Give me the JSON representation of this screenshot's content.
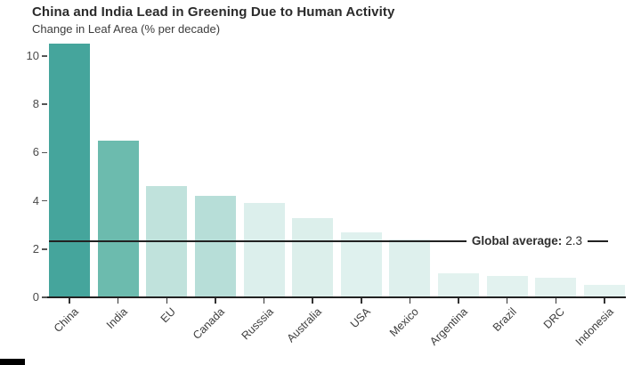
{
  "header": {
    "title": "China and India Lead in Greening Due to Human Activity",
    "subtitle": "Change in Leaf Area (% per decade)"
  },
  "chart_data": {
    "type": "bar",
    "title": "China and India Lead in Greening Due to Human Activity",
    "subtitle": "Change in Leaf Area (% per decade)",
    "categories": [
      "China",
      "India",
      "EU",
      "Canada",
      "Russsia",
      "Australia",
      "USA",
      "Mexico",
      "Argentina",
      "Brazil",
      "DRC",
      "Indonesia"
    ],
    "values": [
      10.5,
      6.5,
      4.6,
      4.2,
      3.9,
      3.3,
      2.7,
      2.4,
      1.0,
      0.9,
      0.8,
      0.5
    ],
    "bar_colors": [
      "#45a59c",
      "#6cbbae",
      "#c0e2dc",
      "#b7ded8",
      "#dcefec",
      "#dcefeb",
      "#dff1ee",
      "#def0ed",
      "#e2f2ef",
      "#e2f2ef",
      "#e3f2ef",
      "#e4f3f0"
    ],
    "xlabel": "",
    "ylabel": "Change in Leaf Area (% per decade)",
    "ylim": [
      0,
      10.6
    ],
    "yticks": [
      0,
      2,
      4,
      6,
      8,
      10
    ],
    "grid": false,
    "legend_position": "none",
    "annotation": {
      "bold_text": "Global average:",
      "value_text": "2.3",
      "full_label": "Global average: 2.3",
      "line_value": 2.3
    }
  },
  "misc": {
    "bottom_left_bar_color": "#000000",
    "axis_color": "#222222",
    "background": "#ffffff"
  }
}
